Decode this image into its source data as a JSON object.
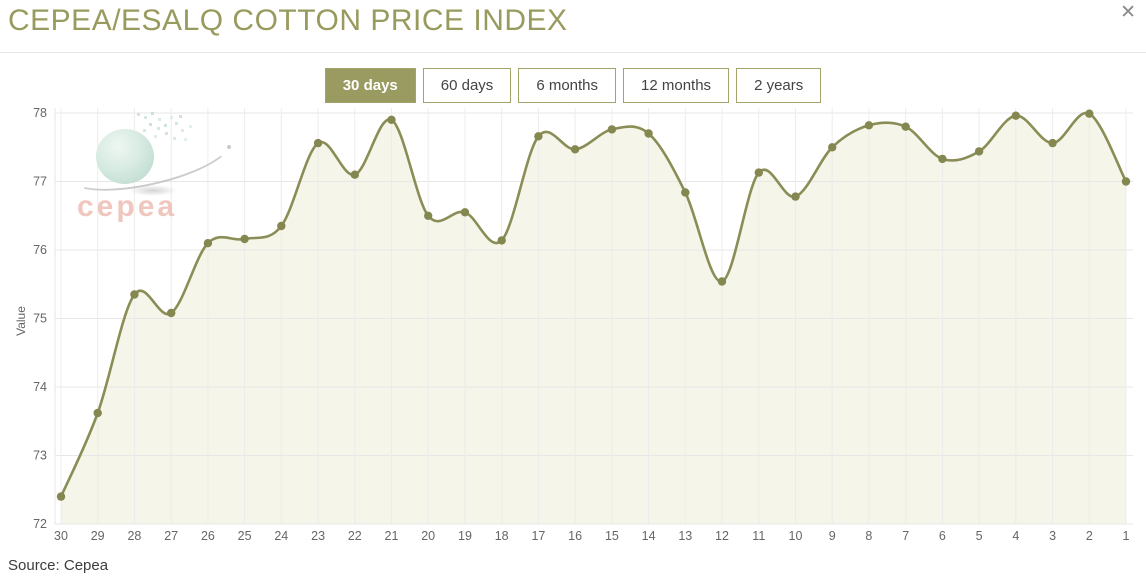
{
  "header": {
    "title": "CEPEA/ESALQ COTTON PRICE INDEX",
    "close_glyph": "✕"
  },
  "tabs": [
    {
      "label": "30 days",
      "active": true
    },
    {
      "label": "60 days",
      "active": false
    },
    {
      "label": "6 months",
      "active": false
    },
    {
      "label": "12 months",
      "active": false
    },
    {
      "label": "2 years",
      "active": false
    }
  ],
  "watermark": {
    "text": "cepea"
  },
  "chart_data": {
    "type": "area",
    "title": "CEPEA/ESALQ COTTON PRICE INDEX",
    "xlabel": "",
    "ylabel": "Value",
    "ylim": [
      72,
      78
    ],
    "yticks": [
      72,
      73,
      74,
      75,
      76,
      77,
      78
    ],
    "grid": true,
    "legend": "none",
    "categories": [
      "30",
      "29",
      "28",
      "27",
      "26",
      "25",
      "24",
      "23",
      "22",
      "21",
      "20",
      "19",
      "18",
      "17",
      "16",
      "15",
      "14",
      "13",
      "12",
      "11",
      "10",
      "9",
      "8",
      "7",
      "6",
      "5",
      "4",
      "3",
      "2",
      "1"
    ],
    "series": [
      {
        "name": "Cotton Price Index",
        "values": [
          72.4,
          73.62,
          75.35,
          75.08,
          76.1,
          76.16,
          76.35,
          77.56,
          77.1,
          77.9,
          76.5,
          76.55,
          76.14,
          77.66,
          77.47,
          77.76,
          77.7,
          76.84,
          75.54,
          77.13,
          76.78,
          77.5,
          77.82,
          77.8,
          77.33,
          77.44,
          77.96,
          77.56,
          77.99,
          77.0
        ]
      }
    ],
    "line_color": "#8a8d55",
    "dot_color": "#84874f",
    "area_fill": "#f5f5ea",
    "grid_color": "#e7e7e7",
    "axis_text_color": "#666666"
  },
  "colors": {
    "title": "#999b5e",
    "accent_olive": "#9a9b60",
    "tab_border": "#a3a46b",
    "tab_text": "#444444",
    "active_tab_text": "#ffffff",
    "source_text": "#3d3d3d",
    "watermark_pink": "#edbeb5",
    "watermark_globe": "#d7ebe2"
  },
  "footer": {
    "source": "Source: Cepea"
  }
}
